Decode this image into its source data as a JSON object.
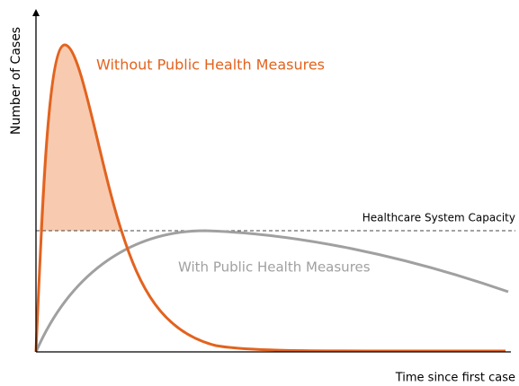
{
  "diagram": {
    "y_axis_label": "Number of Cases",
    "x_axis_label": "Time since first case",
    "capacity_label": "Healthcare System Capacity",
    "curves": [
      {
        "label": "Without Public Health Measures"
      },
      {
        "label": "With Public Health Measures"
      }
    ]
  }
}
